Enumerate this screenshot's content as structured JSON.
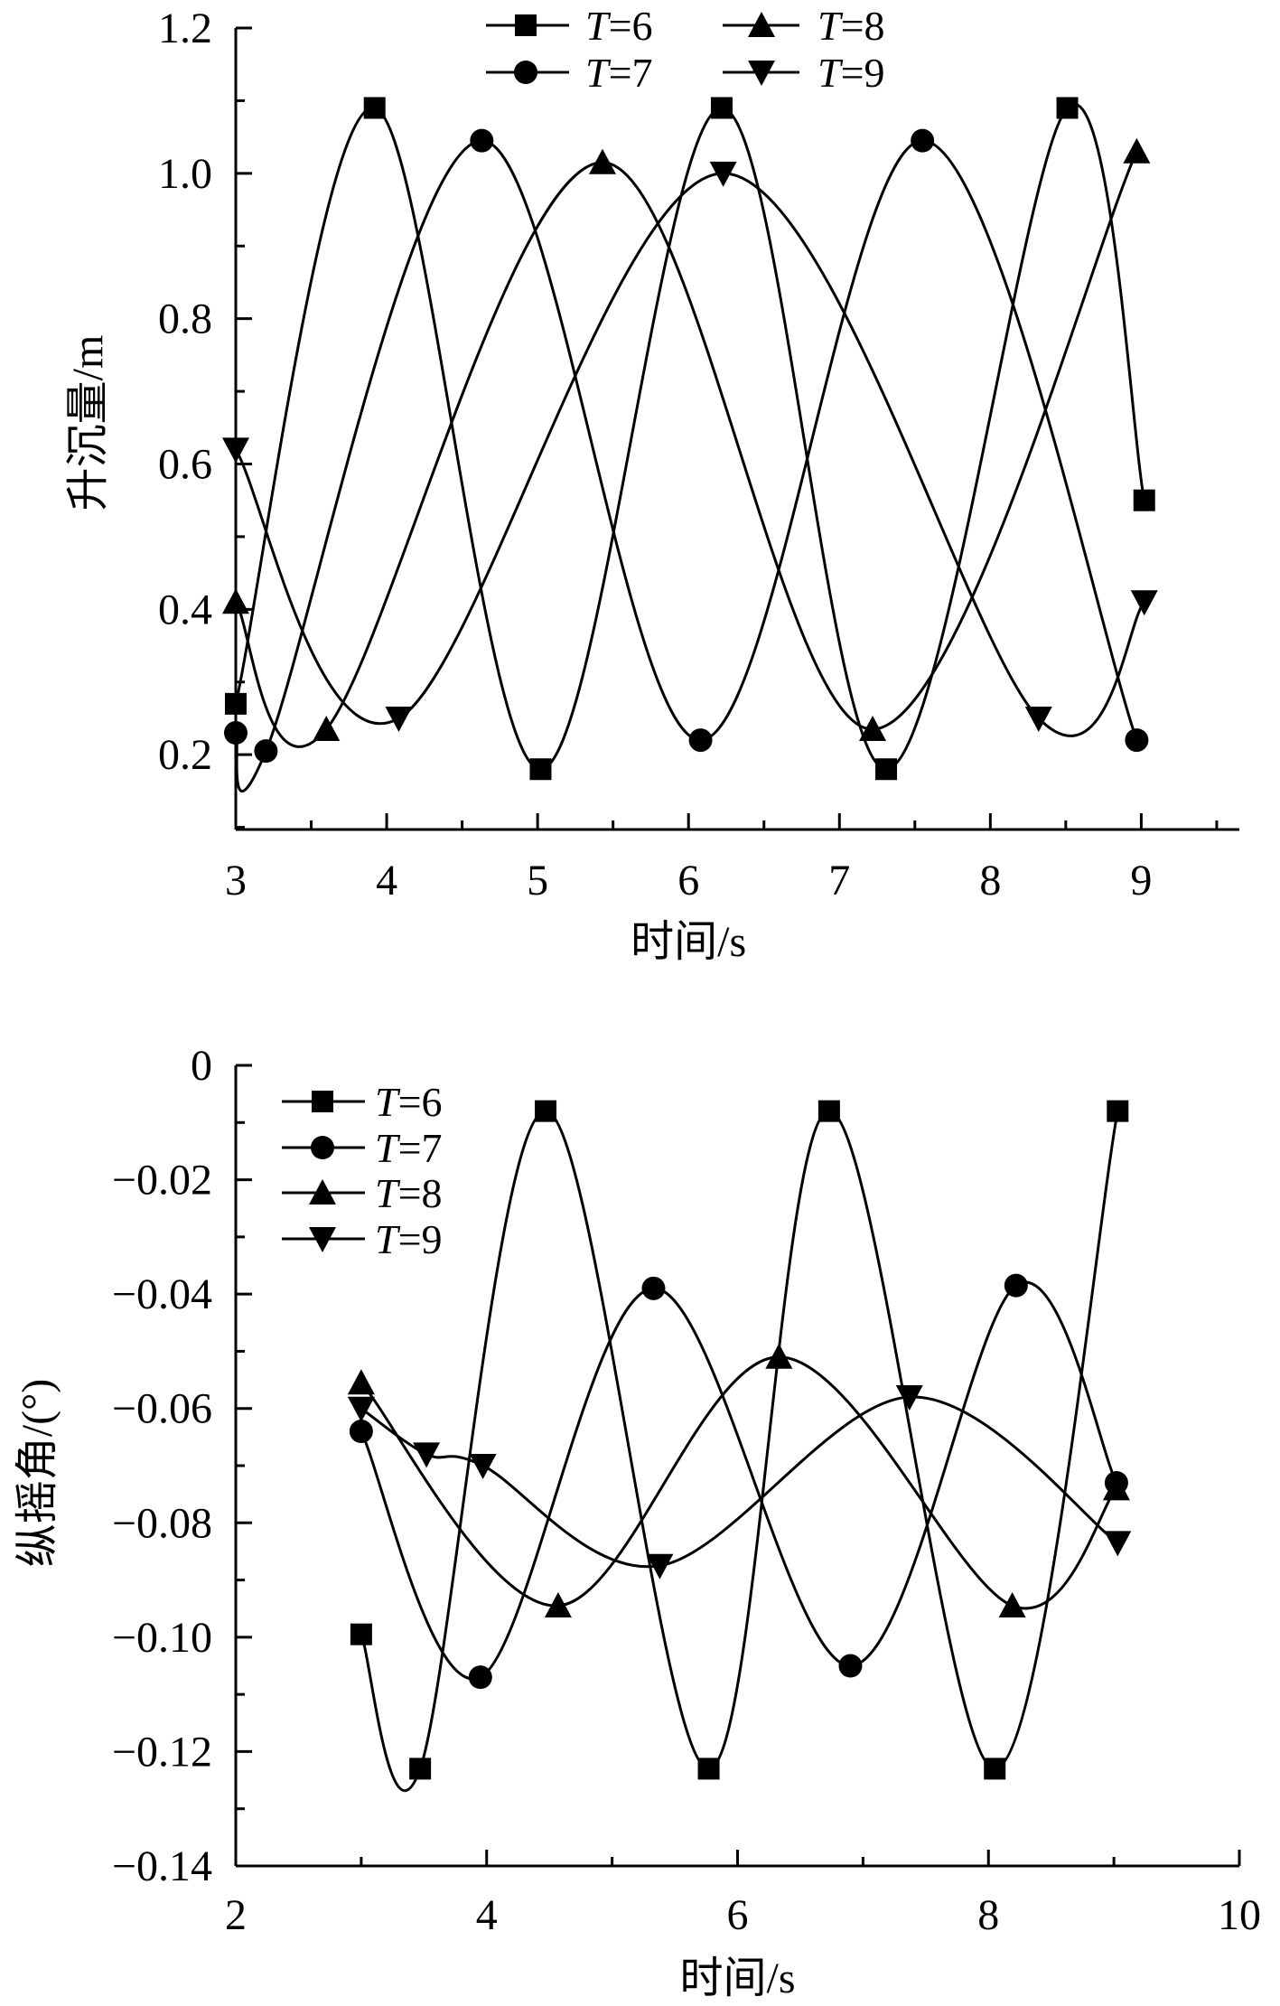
{
  "chart_data": [
    {
      "type": "line",
      "title": "",
      "xlabel": "时间/s",
      "ylabel": "升沉量/m",
      "xlim": [
        3,
        9.65
      ],
      "ylim": [
        0.097,
        1.2
      ],
      "xticks": [
        3,
        4,
        5,
        6,
        7,
        8,
        9
      ],
      "xtick_labels": [
        "3",
        "4",
        "5",
        "6",
        "7",
        "8",
        "9"
      ],
      "yticks": [
        0.2,
        0.4,
        0.6,
        0.8,
        1.0,
        1.2
      ],
      "ytick_labels": [
        "0.2",
        "0.4",
        "0.6",
        "0.8",
        "1.0",
        "1.2"
      ],
      "x_minor_step": 0.5,
      "y_minor_step": 0.1,
      "grid": false,
      "legend_placement": "top-center",
      "series": [
        {
          "name": "T=6",
          "marker": "square",
          "points": [
            [
              3,
              0.27
            ],
            [
              3.92,
              1.09
            ],
            [
              5.02,
              0.18
            ],
            [
              6.22,
              1.09
            ],
            [
              7.31,
              0.18
            ],
            [
              8.51,
              1.09
            ],
            [
              9.02,
              0.55
            ]
          ]
        },
        {
          "name": "T=7",
          "marker": "circle",
          "points": [
            [
              3,
              0.23
            ],
            [
              3.2,
              0.205
            ],
            [
              4.63,
              1.045
            ],
            [
              6.08,
              0.22
            ],
            [
              7.55,
              1.045
            ],
            [
              8.97,
              0.22
            ]
          ]
        },
        {
          "name": "T=8",
          "marker": "triangle-up",
          "points": [
            [
              3,
              0.41
            ],
            [
              3.6,
              0.235
            ],
            [
              5.43,
              1.015
            ],
            [
              7.22,
              0.235
            ],
            [
              8.97,
              1.03
            ]
          ]
        },
        {
          "name": "T=9",
          "marker": "triangle-down",
          "points": [
            [
              3,
              0.62
            ],
            [
              4.08,
              0.25
            ],
            [
              6.23,
              1.0
            ],
            [
              8.32,
              0.25
            ],
            [
              9.02,
              0.41
            ]
          ]
        }
      ]
    },
    {
      "type": "line",
      "title": "",
      "xlabel": "时间/s",
      "ylabel": "纵摇角/(°)",
      "xlim": [
        2,
        10
      ],
      "ylim": [
        -0.14,
        0
      ],
      "xticks": [
        2,
        4,
        6,
        8,
        10
      ],
      "xtick_labels": [
        "2",
        "4",
        "6",
        "8",
        "10"
      ],
      "yticks": [
        0,
        -0.02,
        -0.04,
        -0.06,
        -0.08,
        -0.1,
        -0.12,
        -0.14
      ],
      "ytick_labels": [
        "0",
        "−0.02",
        "−0.04",
        "−0.06",
        "−0.08",
        "−0.10",
        "−0.12",
        "−0.14"
      ],
      "x_minor_step": 1,
      "y_minor_step": 0.01,
      "grid": false,
      "legend_placement": "top-left",
      "series": [
        {
          "name": "T=6",
          "marker": "square",
          "points": [
            [
              3,
              -0.0995
            ],
            [
              3.47,
              -0.123
            ],
            [
              4.47,
              -0.008
            ],
            [
              5.77,
              -0.123
            ],
            [
              6.73,
              -0.008
            ],
            [
              8.05,
              -0.123
            ],
            [
              9.03,
              -0.008
            ]
          ]
        },
        {
          "name": "T=7",
          "marker": "circle",
          "points": [
            [
              3,
              -0.064
            ],
            [
              3.95,
              -0.107
            ],
            [
              5.33,
              -0.039
            ],
            [
              6.9,
              -0.105
            ],
            [
              8.22,
              -0.0385
            ],
            [
              9.02,
              -0.073
            ]
          ]
        },
        {
          "name": "T=8",
          "marker": "triangle-up",
          "points": [
            [
              3,
              -0.0555
            ],
            [
              4.57,
              -0.0945
            ],
            [
              6.33,
              -0.051
            ],
            [
              8.19,
              -0.0945
            ],
            [
              9.02,
              -0.074
            ]
          ]
        },
        {
          "name": "T=9",
          "marker": "triangle-down",
          "points": [
            [
              3,
              -0.06
            ],
            [
              3.52,
              -0.068
            ],
            [
              3.97,
              -0.07
            ],
            [
              5.38,
              -0.0875
            ],
            [
              7.37,
              -0.058
            ],
            [
              9.03,
              -0.0835
            ]
          ]
        }
      ]
    }
  ]
}
